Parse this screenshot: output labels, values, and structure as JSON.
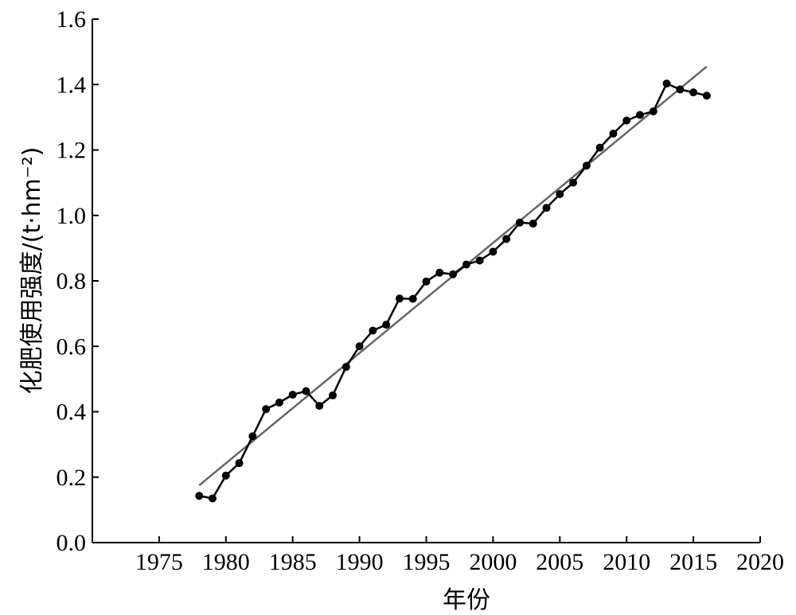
{
  "chart_data": {
    "type": "line",
    "xlabel": "年份",
    "ylabel": "化肥使用强度/(t·hm⁻²)",
    "xlim": [
      1970,
      2020
    ],
    "ylim": [
      0.0,
      1.6
    ],
    "xticks": [
      "1975",
      "1980",
      "1985",
      "1990",
      "1995",
      "2000",
      "2005",
      "2010",
      "2015",
      "2020"
    ],
    "yticks": [
      "0.0",
      "0.2",
      "0.4",
      "0.6",
      "0.8",
      "1.0",
      "1.2",
      "1.4",
      "1.6"
    ],
    "grid": false,
    "series": [
      {
        "x": [
          1978,
          1979,
          1980,
          1981,
          1982,
          1983,
          1984,
          1985,
          1986,
          1987,
          1988,
          1989,
          1990,
          1991,
          1992,
          1993,
          1994,
          1995,
          1996,
          1997,
          1998,
          1999,
          2000,
          2001,
          2002,
          2003,
          2004,
          2005,
          2006,
          2007,
          2008,
          2009,
          2010,
          2011,
          2012,
          2013,
          2014,
          2015,
          2016
        ],
        "values": [
          0.143,
          0.135,
          0.205,
          0.243,
          0.325,
          0.408,
          0.428,
          0.452,
          0.463,
          0.418,
          0.45,
          0.537,
          0.6,
          0.648,
          0.666,
          0.746,
          0.745,
          0.798,
          0.825,
          0.82,
          0.85,
          0.862,
          0.889,
          0.928,
          0.978,
          0.975,
          1.023,
          1.065,
          1.1,
          1.152,
          1.207,
          1.25,
          1.29,
          1.307,
          1.318,
          1.403,
          1.385,
          1.376,
          1.366
        ],
        "color": "#000000"
      },
      {
        "x": [
          1978,
          2016
        ],
        "values": [
          0.175,
          1.455
        ],
        "color": "#666666"
      }
    ]
  }
}
